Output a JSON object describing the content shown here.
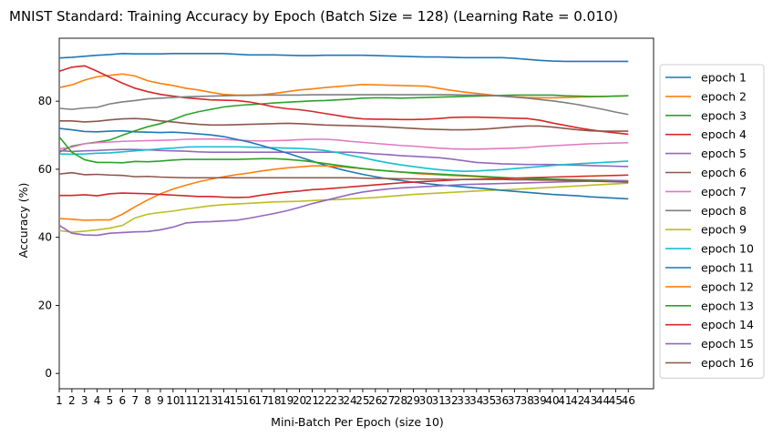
{
  "chart_data": {
    "type": "line",
    "title": "MNIST Standard: Training Accuracy by Epoch (Batch Size = 128) (Learning Rate = 0.010)",
    "xlabel": "Mini-Batch Per Epoch (size 10)",
    "ylabel": "Accuracy (%)",
    "xlim": [
      1,
      48
    ],
    "ylim": [
      -4.5,
      98.5
    ],
    "x_ticks": [
      1,
      2,
      3,
      4,
      5,
      6,
      7,
      8,
      9,
      10,
      11,
      12,
      13,
      14,
      15,
      16,
      17,
      18,
      19,
      20,
      21,
      22,
      23,
      24,
      25,
      26,
      27,
      28,
      29,
      30,
      31,
      32,
      33,
      34,
      35,
      36,
      37,
      38,
      39,
      40,
      41,
      42,
      43,
      44,
      45,
      46
    ],
    "y_ticks": [
      0,
      20,
      40,
      60,
      80
    ],
    "grid": false,
    "legend_position": "right, outside plot",
    "x": [
      1,
      2,
      3,
      4,
      5,
      6,
      7,
      8,
      9,
      10,
      11,
      12,
      13,
      14,
      15,
      16,
      17,
      18,
      19,
      20,
      21,
      22,
      23,
      24,
      25,
      26,
      27,
      28,
      29,
      30,
      31,
      32,
      33,
      34,
      35,
      36,
      37,
      38,
      39,
      40,
      41,
      42,
      43,
      44,
      45,
      46
    ],
    "series": [
      {
        "name": "epoch 1",
        "color": "#1f77b4",
        "values": [
          92.7,
          92.9,
          93.2,
          93.5,
          93.7,
          94.0,
          93.9,
          93.9,
          93.9,
          94.0,
          94.0,
          94.0,
          94.0,
          94.0,
          93.8,
          93.6,
          93.6,
          93.6,
          93.5,
          93.4,
          93.4,
          93.5,
          93.5,
          93.5,
          93.5,
          93.4,
          93.3,
          93.2,
          93.1,
          93.0,
          93.0,
          92.9,
          92.8,
          92.8,
          92.8,
          92.8,
          92.6,
          92.3,
          92.0,
          91.8,
          91.7,
          91.7,
          91.7,
          91.7,
          91.7,
          91.7
        ]
      },
      {
        "name": "epoch 2",
        "color": "#ff7f0e",
        "values": [
          84.0,
          84.8,
          86.2,
          87.2,
          87.6,
          88.0,
          87.4,
          86.0,
          85.2,
          84.6,
          83.8,
          83.3,
          82.6,
          82.0,
          81.8,
          81.8,
          81.9,
          82.3,
          82.8,
          83.3,
          83.6,
          84.0,
          84.3,
          84.6,
          84.9,
          84.8,
          84.7,
          84.6,
          84.5,
          84.4,
          83.8,
          83.2,
          82.7,
          82.3,
          81.9,
          81.5,
          81.3,
          81.1,
          81.0,
          81.0,
          81.1,
          81.2,
          81.3,
          81.4,
          81.5,
          81.6
        ]
      },
      {
        "name": "epoch 3",
        "color": "#2ca02c",
        "values": [
          65.0,
          66.8,
          67.5,
          68.0,
          68.6,
          70.0,
          71.3,
          72.5,
          73.4,
          74.6,
          76.0,
          76.9,
          77.6,
          78.3,
          78.7,
          79.0,
          79.2,
          79.5,
          79.7,
          79.9,
          80.1,
          80.2,
          80.4,
          80.6,
          80.9,
          81.0,
          81.0,
          80.9,
          81.0,
          81.1,
          81.2,
          81.3,
          81.4,
          81.5,
          81.6,
          81.7,
          81.8,
          81.8,
          81.8,
          81.8,
          81.6,
          81.5,
          81.4,
          81.4,
          81.5,
          81.6
        ]
      },
      {
        "name": "epoch 4",
        "color": "#d62728",
        "values": [
          88.8,
          90.0,
          90.4,
          88.8,
          87.0,
          85.3,
          83.8,
          82.8,
          82.0,
          81.5,
          81.0,
          80.7,
          80.4,
          80.3,
          80.2,
          79.8,
          79.1,
          78.3,
          77.8,
          77.5,
          77.0,
          76.4,
          75.8,
          75.2,
          74.8,
          74.7,
          74.7,
          74.6,
          74.6,
          74.7,
          74.9,
          75.2,
          75.3,
          75.3,
          75.2,
          75.1,
          75.0,
          74.9,
          74.4,
          73.6,
          72.9,
          72.2,
          71.6,
          71.1,
          70.7,
          70.3
        ]
      },
      {
        "name": "epoch 5",
        "color": "#9467bd",
        "values": [
          65.5,
          65.2,
          65.4,
          65.5,
          65.7,
          65.8,
          65.8,
          65.7,
          65.5,
          65.4,
          65.3,
          65.1,
          65.0,
          65.0,
          65.0,
          65.0,
          65.0,
          65.0,
          65.0,
          65.0,
          65.0,
          65.0,
          65.0,
          65.0,
          64.8,
          64.5,
          64.3,
          64.0,
          63.8,
          63.6,
          63.4,
          63.0,
          62.5,
          62.0,
          61.8,
          61.6,
          61.5,
          61.4,
          61.4,
          61.4,
          61.3,
          61.2,
          61.1,
          61.0,
          60.9,
          60.8
        ]
      },
      {
        "name": "epoch 6",
        "color": "#8c564b",
        "values": [
          74.2,
          74.2,
          73.9,
          74.1,
          74.5,
          74.8,
          74.9,
          74.7,
          74.2,
          73.9,
          73.5,
          73.2,
          73.0,
          73.0,
          73.1,
          73.2,
          73.3,
          73.4,
          73.5,
          73.4,
          73.2,
          73.0,
          72.9,
          72.8,
          72.7,
          72.6,
          72.4,
          72.2,
          72.0,
          71.8,
          71.7,
          71.6,
          71.6,
          71.7,
          71.9,
          72.2,
          72.5,
          72.7,
          72.7,
          72.4,
          72.0,
          71.6,
          71.3,
          71.2,
          71.2,
          71.2
        ]
      },
      {
        "name": "epoch 7",
        "color": "#e377c2",
        "values": [
          66.0,
          66.5,
          67.5,
          67.8,
          68.0,
          68.2,
          68.3,
          68.4,
          68.5,
          68.6,
          68.8,
          68.9,
          68.9,
          68.8,
          68.6,
          68.4,
          68.3,
          68.4,
          68.5,
          68.7,
          68.8,
          68.8,
          68.6,
          68.2,
          67.9,
          67.6,
          67.3,
          67.0,
          66.8,
          66.5,
          66.2,
          66.0,
          65.9,
          65.9,
          66.0,
          66.1,
          66.2,
          66.4,
          66.7,
          66.9,
          67.1,
          67.3,
          67.5,
          67.6,
          67.7,
          67.8
        ]
      },
      {
        "name": "epoch 8",
        "color": "#7f7f7f",
        "values": [
          77.9,
          77.6,
          78.0,
          78.2,
          79.2,
          79.8,
          80.2,
          80.7,
          80.9,
          81.1,
          81.3,
          81.4,
          81.5,
          81.6,
          81.7,
          81.7,
          81.8,
          81.8,
          81.8,
          81.8,
          81.9,
          81.9,
          81.9,
          81.9,
          81.9,
          81.9,
          81.9,
          81.9,
          81.9,
          81.9,
          81.9,
          81.9,
          81.8,
          81.8,
          81.7,
          81.5,
          81.2,
          80.9,
          80.5,
          80.1,
          79.6,
          79.0,
          78.3,
          77.6,
          76.8,
          76.1
        ]
      },
      {
        "name": "epoch 9",
        "color": "#bcbd22",
        "values": [
          42.0,
          41.5,
          41.8,
          42.2,
          42.7,
          43.5,
          45.7,
          46.8,
          47.3,
          47.7,
          48.3,
          48.8,
          49.3,
          49.6,
          49.8,
          50.0,
          50.2,
          50.4,
          50.5,
          50.6,
          50.8,
          51.0,
          51.1,
          51.3,
          51.5,
          51.7,
          52.0,
          52.3,
          52.6,
          52.8,
          53.0,
          53.2,
          53.4,
          53.6,
          53.8,
          53.9,
          54.1,
          54.3,
          54.5,
          54.7,
          54.9,
          55.1,
          55.3,
          55.5,
          55.7,
          55.9
        ]
      },
      {
        "name": "epoch 10",
        "color": "#17becf",
        "values": [
          64.5,
          64.4,
          64.5,
          64.7,
          64.8,
          65.1,
          65.4,
          65.7,
          66.0,
          66.2,
          66.5,
          66.6,
          66.6,
          66.6,
          66.6,
          66.5,
          66.4,
          66.3,
          66.2,
          66.1,
          65.9,
          65.5,
          64.9,
          64.1,
          63.4,
          62.6,
          61.9,
          61.3,
          60.8,
          60.3,
          59.9,
          59.6,
          59.4,
          59.5,
          59.7,
          59.9,
          60.2,
          60.5,
          60.8,
          61.1,
          61.4,
          61.6,
          61.8,
          62.0,
          62.2,
          62.4
        ]
      },
      {
        "name": "epoch 11",
        "color": "#1f77b4",
        "values": [
          72.0,
          71.6,
          71.1,
          71.0,
          71.2,
          71.3,
          71.0,
          70.9,
          70.8,
          70.9,
          70.7,
          70.4,
          70.1,
          69.6,
          68.8,
          68.0,
          67.0,
          65.9,
          64.8,
          63.6,
          62.4,
          61.2,
          60.2,
          59.3,
          58.5,
          57.8,
          57.2,
          56.7,
          56.2,
          55.8,
          55.4,
          55.1,
          54.8,
          54.5,
          54.2,
          53.8,
          53.5,
          53.2,
          52.9,
          52.6,
          52.4,
          52.2,
          51.9,
          51.7,
          51.5,
          51.3
        ]
      },
      {
        "name": "epoch 12",
        "color": "#ff7f0e",
        "values": [
          45.5,
          45.3,
          45.0,
          45.1,
          45.1,
          46.8,
          49.0,
          51.0,
          52.8,
          54.2,
          55.3,
          56.3,
          57.1,
          57.8,
          58.4,
          58.9,
          59.5,
          60.0,
          60.4,
          60.7,
          61.0,
          61.0,
          60.8,
          60.5,
          60.2,
          59.8,
          59.5,
          59.2,
          58.8,
          58.6,
          58.4,
          58.2,
          58.0,
          57.8,
          57.6,
          57.5,
          57.4,
          57.3,
          57.2,
          57.1,
          57.0,
          56.9,
          56.8,
          56.8,
          56.7,
          56.6
        ]
      },
      {
        "name": "epoch 13",
        "color": "#2ca02c",
        "values": [
          69.5,
          65.0,
          62.8,
          62.0,
          62.0,
          61.9,
          62.3,
          62.2,
          62.4,
          62.7,
          62.9,
          62.9,
          62.9,
          62.9,
          62.9,
          63.0,
          63.1,
          63.1,
          62.9,
          62.6,
          62.2,
          61.7,
          61.2,
          60.7,
          60.2,
          59.8,
          59.5,
          59.2,
          59.0,
          58.8,
          58.6,
          58.4,
          58.2,
          58.0,
          57.8,
          57.6,
          57.4,
          57.3,
          57.2,
          57.1,
          57.0,
          56.9,
          56.8,
          56.7,
          56.7,
          56.6
        ]
      },
      {
        "name": "epoch 14",
        "color": "#d62728",
        "values": [
          52.3,
          52.3,
          52.5,
          52.2,
          52.8,
          53.0,
          52.9,
          52.8,
          52.6,
          52.4,
          52.2,
          52.0,
          52.0,
          51.8,
          51.7,
          51.8,
          52.4,
          52.9,
          53.3,
          53.6,
          54.0,
          54.2,
          54.5,
          54.8,
          55.1,
          55.4,
          55.7,
          56.0,
          56.2,
          56.4,
          56.6,
          56.8,
          57.0,
          57.1,
          57.2,
          57.3,
          57.4,
          57.5,
          57.6,
          57.7,
          57.8,
          57.9,
          58.0,
          58.1,
          58.2,
          58.3
        ]
      },
      {
        "name": "epoch 15",
        "color": "#9467bd",
        "values": [
          43.5,
          41.2,
          40.7,
          40.6,
          41.2,
          41.4,
          41.6,
          41.7,
          42.2,
          43.0,
          44.2,
          44.5,
          44.6,
          44.8,
          45.0,
          45.6,
          46.3,
          47.0,
          47.8,
          48.8,
          49.9,
          50.8,
          51.7,
          52.6,
          53.3,
          53.8,
          54.2,
          54.5,
          54.7,
          54.9,
          55.1,
          55.3,
          55.5,
          55.6,
          55.7,
          55.8,
          55.9,
          56.0,
          56.1,
          56.2,
          56.3,
          56.4,
          56.5,
          56.5,
          56.6,
          56.6
        ]
      },
      {
        "name": "epoch 16",
        "color": "#8c564b",
        "values": [
          58.6,
          59.0,
          58.4,
          58.5,
          58.3,
          58.2,
          57.8,
          57.9,
          57.7,
          57.6,
          57.5,
          57.5,
          57.5,
          57.5,
          57.5,
          57.5,
          57.5,
          57.5,
          57.5,
          57.5,
          57.5,
          57.5,
          57.5,
          57.5,
          57.4,
          57.3,
          57.3,
          57.2,
          57.2,
          57.1,
          57.1,
          57.0,
          57.0,
          57.0,
          57.0,
          57.0,
          56.9,
          56.9,
          56.8,
          56.8,
          56.7,
          56.6,
          56.5,
          56.4,
          56.3,
          56.2
        ]
      }
    ]
  }
}
